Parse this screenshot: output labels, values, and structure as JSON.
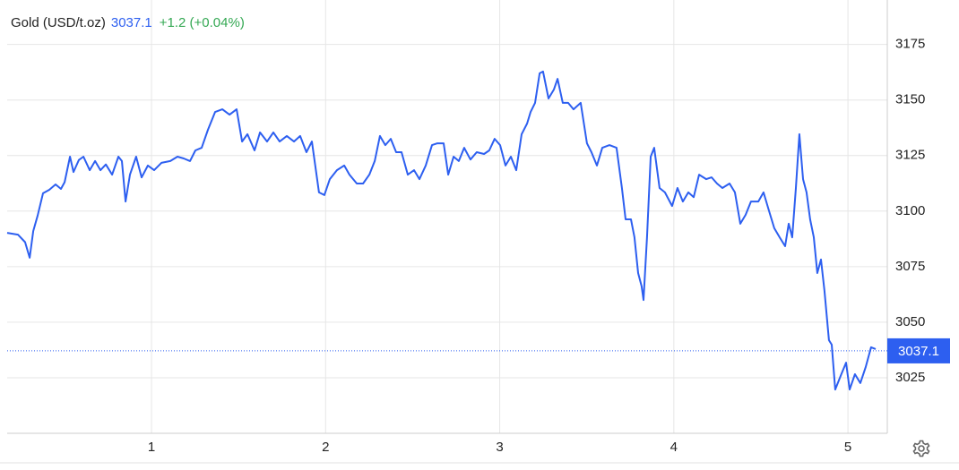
{
  "chart_data": {
    "type": "line",
    "title": "Gold (USD/t.oz)",
    "last_price": 3037.1,
    "change": "+1.2 (+0.04%)",
    "color": "#2d5ff0",
    "grid": true,
    "x": [
      0.171,
      0.233,
      0.274,
      0.3,
      0.321,
      0.346,
      0.377,
      0.413,
      0.449,
      0.48,
      0.501,
      0.532,
      0.552,
      0.583,
      0.609,
      0.645,
      0.676,
      0.707,
      0.738,
      0.774,
      0.81,
      0.83,
      0.851,
      0.876,
      0.912,
      0.943,
      0.979,
      1.015,
      1.057,
      1.108,
      1.149,
      1.185,
      1.221,
      1.252,
      1.288,
      1.324,
      1.365,
      1.407,
      1.448,
      1.489,
      1.52,
      1.551,
      1.592,
      1.623,
      1.664,
      1.7,
      1.736,
      1.777,
      1.818,
      1.854,
      1.89,
      1.921,
      1.962,
      1.993,
      2.024,
      2.065,
      2.107,
      2.137,
      2.179,
      2.215,
      2.251,
      2.282,
      2.312,
      2.343,
      2.374,
      2.405,
      2.436,
      2.472,
      2.508,
      2.539,
      2.575,
      2.611,
      2.642,
      2.678,
      2.704,
      2.735,
      2.765,
      2.796,
      2.832,
      2.868,
      2.91,
      2.94,
      2.971,
      3.002,
      3.033,
      3.064,
      3.095,
      3.126,
      3.157,
      3.177,
      3.203,
      3.229,
      3.249,
      3.28,
      3.311,
      3.332,
      3.362,
      3.393,
      3.424,
      3.465,
      3.501,
      3.527,
      3.558,
      3.589,
      3.63,
      3.671,
      3.702,
      3.723,
      3.754,
      3.774,
      3.795,
      3.815,
      3.826,
      3.846,
      3.867,
      3.887,
      3.918,
      3.949,
      3.99,
      4.021,
      4.052,
      4.083,
      4.114,
      4.145,
      4.186,
      4.217,
      4.248,
      4.279,
      4.32,
      4.351,
      4.382,
      4.412,
      4.443,
      4.485,
      4.515,
      4.546,
      4.577,
      4.608,
      4.639,
      4.66,
      4.68,
      4.701,
      4.721,
      4.742,
      4.762,
      4.783,
      4.804,
      4.824,
      4.845,
      4.865,
      4.891,
      4.907,
      4.927,
      4.958,
      4.989,
      5.01,
      5.04,
      5.071,
      5.102,
      5.133,
      5.159
    ],
    "values": [
      3090.2,
      3089.4,
      3086,
      3079,
      3091,
      3098,
      3108,
      3109.6,
      3112,
      3110,
      3113,
      3124.5,
      3117.6,
      3123,
      3124.5,
      3118.4,
      3122.5,
      3118.4,
      3121,
      3116.4,
      3124.5,
      3122.5,
      3104.3,
      3116.4,
      3124.5,
      3115.2,
      3120.5,
      3118.4,
      3121.7,
      3122.5,
      3124.5,
      3123.7,
      3122.5,
      3127.3,
      3128.5,
      3136.6,
      3144.6,
      3145.8,
      3143.4,
      3145.8,
      3131.3,
      3134.6,
      3127.3,
      3135.4,
      3131.3,
      3135.4,
      3131.3,
      3133.8,
      3131.3,
      3133.8,
      3126.5,
      3131.3,
      3108.4,
      3107.2,
      3114.4,
      3118.4,
      3120.5,
      3116.4,
      3112.4,
      3112.4,
      3116.4,
      3122.5,
      3133.8,
      3129.7,
      3132.5,
      3126.5,
      3126.5,
      3116.4,
      3118.4,
      3114.4,
      3120.5,
      3129.7,
      3130.5,
      3130.5,
      3116.4,
      3124.5,
      3122.5,
      3128.5,
      3123.2,
      3126.5,
      3125.7,
      3127.3,
      3132.5,
      3129.7,
      3120.5,
      3124.5,
      3118.4,
      3134.6,
      3139.4,
      3144.6,
      3148.7,
      3162,
      3162.8,
      3150.7,
      3154.7,
      3159.5,
      3148.7,
      3148.7,
      3145.8,
      3148.7,
      3130.5,
      3126.5,
      3120.5,
      3128.5,
      3129.7,
      3128.5,
      3110.4,
      3096.3,
      3096.3,
      3088.2,
      3072.1,
      3066.1,
      3060,
      3088.2,
      3124.5,
      3128.5,
      3110.4,
      3108.4,
      3102.3,
      3110.4,
      3104.3,
      3108.4,
      3106.3,
      3116.4,
      3114.4,
      3115.2,
      3112.4,
      3110.4,
      3112.4,
      3108.4,
      3094.3,
      3098.3,
      3104.3,
      3104.3,
      3108.4,
      3100.3,
      3092.3,
      3088.2,
      3084.2,
      3094.3,
      3088.2,
      3110.4,
      3134.6,
      3114.4,
      3108.4,
      3096.3,
      3088.2,
      3072.1,
      3078.2,
      3064.1,
      3041.9,
      3039.9,
      3019.7,
      3025.8,
      3031.8,
      3019.7,
      3026.6,
      3022.6,
      3029.8,
      3038.7,
      3037.9
    ],
    "xlim": [
      0.171,
      5.226
    ],
    "xticks": [
      1,
      2,
      3,
      4,
      5
    ],
    "ylim": [
      3000,
      3195
    ],
    "yticks": [
      3025,
      3050,
      3075,
      3100,
      3125,
      3150,
      3175
    ]
  }
}
